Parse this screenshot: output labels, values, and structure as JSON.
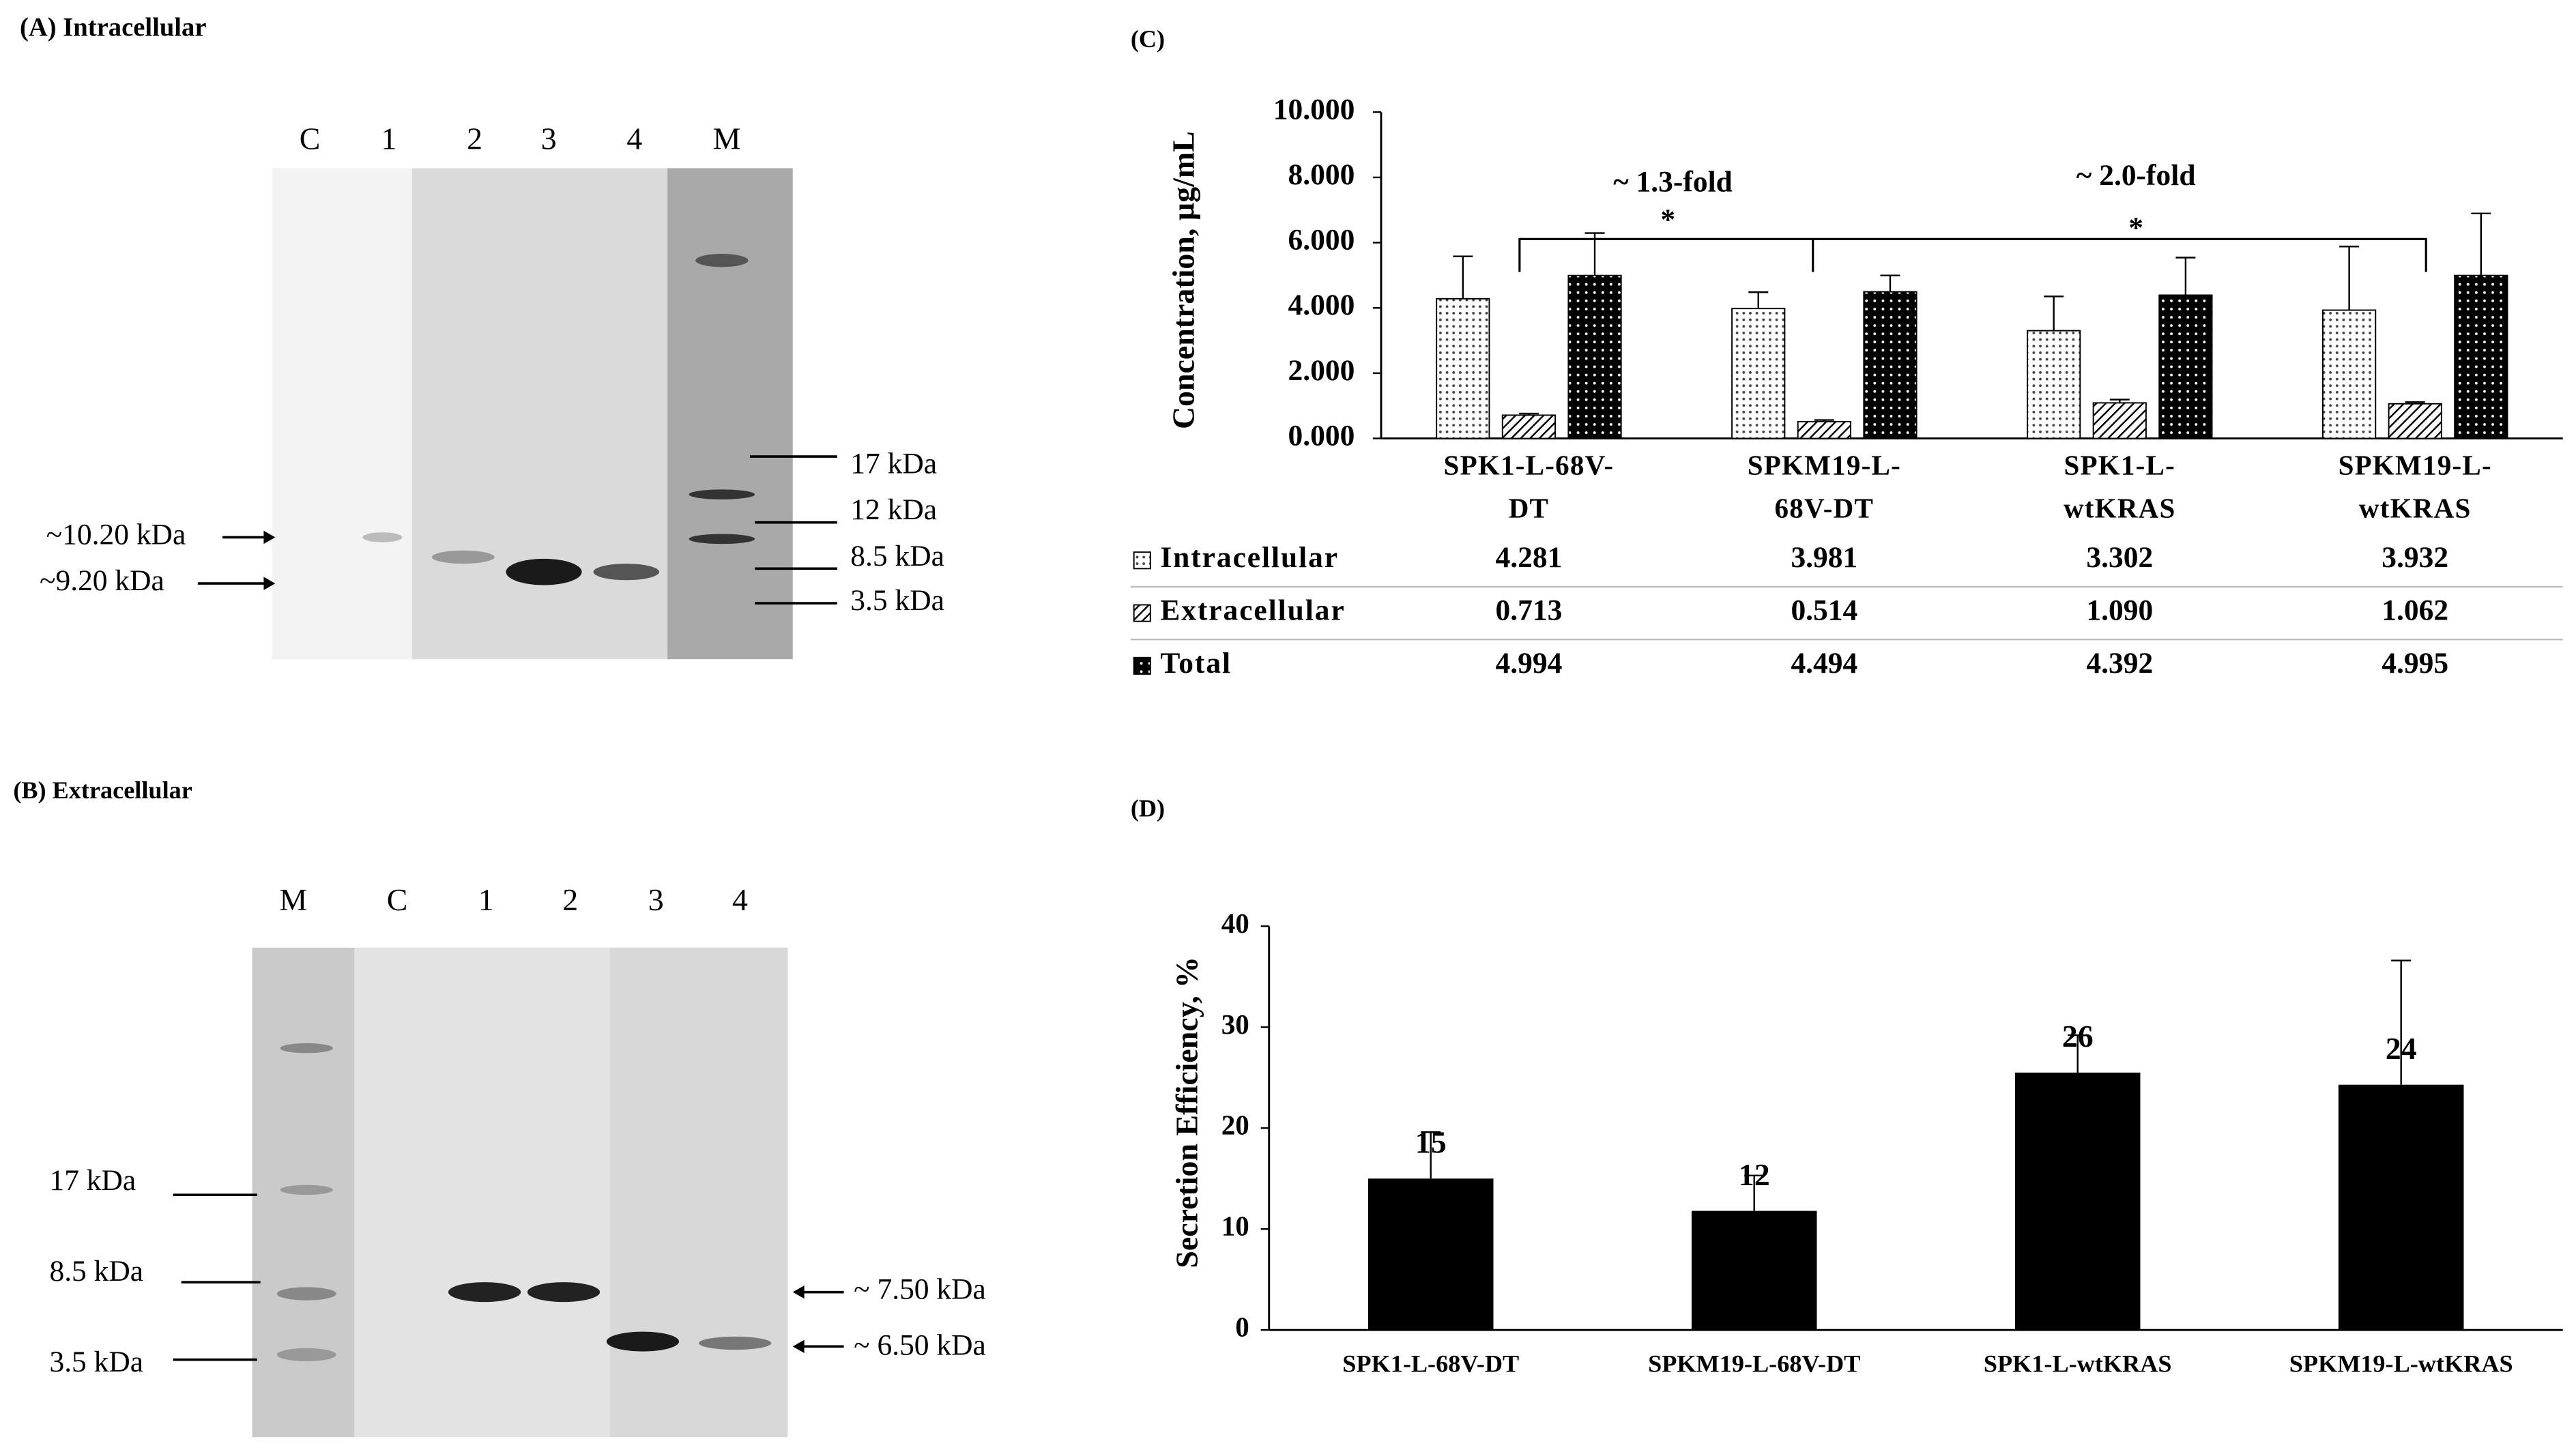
{
  "blots": [
    {
      "title": "(A) Intracellular",
      "lanes": [
        "C",
        "1",
        "2",
        "3",
        "4",
        "M"
      ],
      "markers": [
        "17 kDa",
        "12 kDa",
        "8.5 kDa",
        "3.5 kDa"
      ],
      "bands": [
        "~10.20 kDa",
        "~9.20 kDa"
      ]
    },
    {
      "title": "(B) Extracellular",
      "lanes": [
        "M",
        "C",
        "1",
        "2",
        "3",
        "4"
      ],
      "markers": [
        "17 kDa",
        "8.5 kDa",
        "3.5 kDa"
      ],
      "bands": [
        "~ 7.50 kDa",
        "~ 6.50 kDa"
      ]
    }
  ],
  "chart_data": [
    {
      "type": "bar",
      "panel": "(C)",
      "y_label": "Concentration,  µg/mL",
      "categories": [
        "SPK1-L-68V-\nDT",
        "SPKM19-L-\n68V-DT",
        "SPK1-L-\nwtKRAS",
        "SPKM19-L-\nwtKRAS"
      ],
      "series": [
        {
          "name": "Intracellular",
          "pattern": "dots",
          "values": [
            4.281,
            3.981,
            3.302,
            3.932
          ],
          "value_labels": [
            "4.281",
            "3.981",
            "3.302",
            "3.932"
          ],
          "errors": [
            1.3,
            0.5,
            1.05,
            1.95
          ]
        },
        {
          "name": "Extracellular",
          "pattern": "hatch",
          "values": [
            0.713,
            0.514,
            1.09,
            1.062
          ],
          "value_labels": [
            "0.713",
            "0.514",
            "1.090",
            "1.062"
          ],
          "errors": [
            0.05,
            0.05,
            0.1,
            0.05
          ]
        },
        {
          "name": "Total",
          "pattern": "darkdots",
          "values": [
            4.994,
            4.494,
            4.392,
            4.995
          ],
          "value_labels": [
            "4.994",
            "4.494",
            "4.392",
            "4.995"
          ],
          "errors": [
            1.3,
            0.5,
            1.15,
            1.9
          ]
        }
      ],
      "ylim": [
        0,
        10
      ],
      "yticks": [
        {
          "value": 0,
          "label": "0.000"
        },
        {
          "value": 2,
          "label": "2.000"
        },
        {
          "value": 4,
          "label": "4.000"
        },
        {
          "value": 6,
          "label": "6.000"
        },
        {
          "value": 8,
          "label": "8.000"
        },
        {
          "value": 10,
          "label": "10.000"
        }
      ],
      "annotations": [
        "~ 1.3-fold",
        "*",
        "~ 2.0-fold",
        "*"
      ]
    },
    {
      "type": "bar",
      "panel": "(D)",
      "y_label": "Secretion Efficiency, %",
      "categories": [
        "SPK1-L-68V-DT",
        "SPKM19-L-68V-DT",
        "SPK1-L-wtKRAS",
        "SPKM19-L-wtKRAS"
      ],
      "values": [
        15,
        11.8,
        25.5,
        24.3
      ],
      "value_labels": [
        "15",
        "12",
        "26",
        "24"
      ],
      "errors": [
        4.6,
        3.5,
        3.7,
        12.3
      ],
      "color": "#000000",
      "ylim": [
        0,
        40
      ],
      "yticks": [
        0,
        10,
        20,
        30,
        40
      ]
    }
  ]
}
